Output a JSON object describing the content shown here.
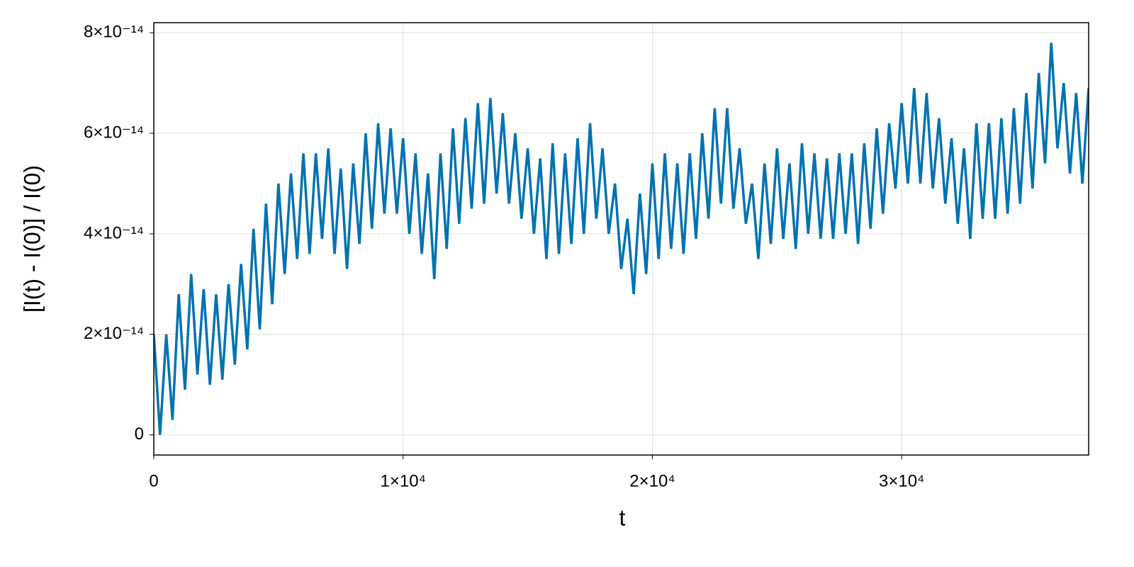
{
  "chart_data": {
    "type": "line",
    "xlabel": "t",
    "ylabel": "[I(t) - I(0)] / I(0)",
    "color": "#0072b2",
    "grid": true,
    "xlim": [
      0,
      37500
    ],
    "ylim": [
      -4e-15,
      8.2e-14
    ],
    "xticks": [
      0,
      {
        "value": 10000,
        "label": "1×10⁴"
      },
      {
        "value": 20000,
        "label": "2×10⁴"
      },
      {
        "value": 30000,
        "label": "3×10⁴"
      }
    ],
    "yticks": [
      0,
      {
        "value": 2e-14,
        "label": "2×10⁻¹⁴"
      },
      {
        "value": 4e-14,
        "label": "4×10⁻¹⁴"
      },
      {
        "value": 6e-14,
        "label": "6×10⁻¹⁴"
      },
      {
        "value": 8e-14,
        "label": "8×10⁻¹⁴"
      }
    ],
    "x": [
      0,
      250,
      500,
      750,
      1000,
      1250,
      1500,
      1750,
      2000,
      2250,
      2500,
      2750,
      3000,
      3250,
      3500,
      3750,
      4000,
      4250,
      4500,
      4750,
      5000,
      5250,
      5500,
      5750,
      6000,
      6250,
      6500,
      6750,
      7000,
      7250,
      7500,
      7750,
      8000,
      8250,
      8500,
      8750,
      9000,
      9250,
      9500,
      9750,
      10000,
      10250,
      10500,
      10750,
      11000,
      11250,
      11500,
      11750,
      12000,
      12250,
      12500,
      12750,
      13000,
      13250,
      13500,
      13750,
      14000,
      14250,
      14500,
      14750,
      15000,
      15250,
      15500,
      15750,
      16000,
      16250,
      16500,
      16750,
      17000,
      17250,
      17500,
      17750,
      18000,
      18250,
      18500,
      18750,
      19000,
      19250,
      19500,
      19750,
      20000,
      20250,
      20500,
      20750,
      21000,
      21250,
      21500,
      21750,
      22000,
      22250,
      22500,
      22750,
      23000,
      23250,
      23500,
      23750,
      24000,
      24250,
      24500,
      24750,
      25000,
      25250,
      25500,
      25750,
      26000,
      26250,
      26500,
      26750,
      27000,
      27250,
      27500,
      27750,
      28000,
      28250,
      28500,
      28750,
      29000,
      29250,
      29500,
      29750,
      30000,
      30250,
      30500,
      30750,
      31000,
      31250,
      31500,
      31750,
      32000,
      32250,
      32500,
      32750,
      33000,
      33250,
      33500,
      33750,
      34000,
      34250,
      34500,
      34750,
      35000,
      35250,
      35500,
      35750,
      36000,
      36250,
      36500,
      36750,
      37000,
      37250,
      37500
    ],
    "values": [
      2e-14,
      0,
      2e-14,
      3e-15,
      2.8e-14,
      9e-15,
      3.2e-14,
      1.2e-14,
      2.9e-14,
      1e-14,
      2.8e-14,
      1.1e-14,
      3e-14,
      1.4e-14,
      3.4e-14,
      1.7e-14,
      4.1e-14,
      2.1e-14,
      4.6e-14,
      2.6e-14,
      5e-14,
      3.2e-14,
      5.2e-14,
      3.5e-14,
      5.6e-14,
      3.6e-14,
      5.6e-14,
      3.9e-14,
      5.7e-14,
      3.6e-14,
      5.3e-14,
      3.3e-14,
      5.4e-14,
      3.8e-14,
      6e-14,
      4.1e-14,
      6.2e-14,
      4.4e-14,
      6.1e-14,
      4.4e-14,
      5.9e-14,
      4e-14,
      5.6e-14,
      3.6e-14,
      5.2e-14,
      3.1e-14,
      5.6e-14,
      3.7e-14,
      6.1e-14,
      4.2e-14,
      6.3e-14,
      4.5e-14,
      6.6e-14,
      4.6e-14,
      6.7e-14,
      4.8e-14,
      6.4e-14,
      4.6e-14,
      6e-14,
      4.3e-14,
      5.7e-14,
      4e-14,
      5.5e-14,
      3.5e-14,
      5.8e-14,
      3.6e-14,
      5.6e-14,
      3.8e-14,
      5.9e-14,
      4e-14,
      6.2e-14,
      4.3e-14,
      5.7e-14,
      4e-14,
      5e-14,
      3.3e-14,
      4.3e-14,
      2.8e-14,
      4.8e-14,
      3.2e-14,
      5.4e-14,
      3.5e-14,
      5.6e-14,
      3.7e-14,
      5.4e-14,
      3.6e-14,
      5.6e-14,
      3.9e-14,
      6e-14,
      4.3e-14,
      6.5e-14,
      4.6e-14,
      6.5e-14,
      4.5e-14,
      5.7e-14,
      4.2e-14,
      5e-14,
      3.5e-14,
      5.4e-14,
      3.8e-14,
      5.7e-14,
      3.9e-14,
      5.4e-14,
      3.7e-14,
      5.8e-14,
      4e-14,
      5.6e-14,
      3.9e-14,
      5.5e-14,
      3.9e-14,
      5.6e-14,
      4e-14,
      5.6e-14,
      3.8e-14,
      5.8e-14,
      4.1e-14,
      6.1e-14,
      4.4e-14,
      6.2e-14,
      4.9e-14,
      6.6e-14,
      5e-14,
      6.9e-14,
      5e-14,
      6.8e-14,
      4.9e-14,
      6.3e-14,
      4.6e-14,
      5.9e-14,
      4.2e-14,
      5.7e-14,
      3.9e-14,
      6.2e-14,
      4.3e-14,
      6.2e-14,
      4.3e-14,
      6.3e-14,
      4.4e-14,
      6.5e-14,
      4.6e-14,
      6.8e-14,
      4.9e-14,
      7.2e-14,
      5.4e-14,
      7.8e-14,
      5.7e-14,
      7e-14,
      5.2e-14,
      6.8e-14,
      5e-14,
      6.9e-14
    ]
  }
}
